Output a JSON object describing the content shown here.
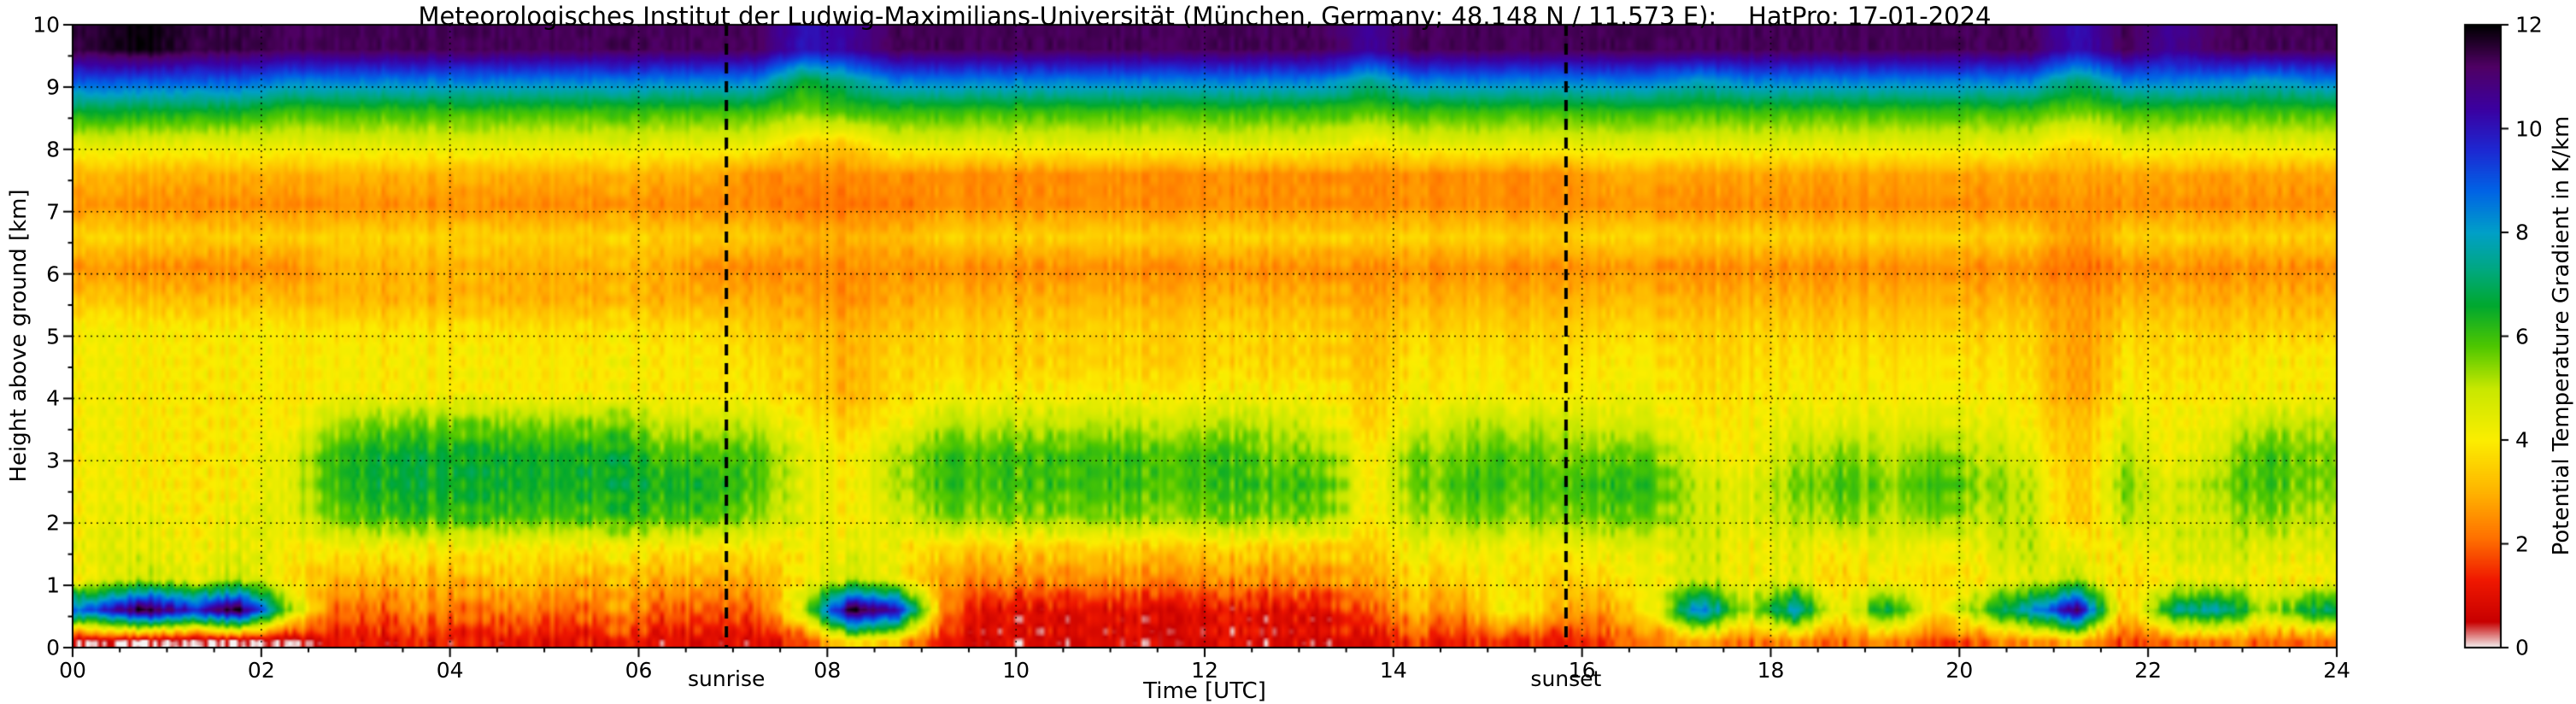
{
  "chart_data": {
    "type": "heatmap",
    "title": "Meteorologisches Institut der Ludwig-Maximilians-Universität (München, Germany; 48.148 N / 11.573 E):    HatPro: 17-01-2024",
    "xlabel": "Time [UTC]",
    "ylabel": "Height above ground [km]",
    "colorbar_label": "Potential Temperature Gradient in K/km",
    "xlim": [
      0,
      24
    ],
    "ylim": [
      0,
      10
    ],
    "clim": [
      0,
      12
    ],
    "gridline_style": "dotted",
    "x_ticks": [
      "00",
      "02",
      "04",
      "06",
      "08",
      "10",
      "12",
      "14",
      "16",
      "18",
      "20",
      "22",
      "24"
    ],
    "x_tick_values": [
      0,
      2,
      4,
      6,
      8,
      10,
      12,
      14,
      16,
      18,
      20,
      22,
      24
    ],
    "y_ticks": [
      "0",
      "1",
      "2",
      "3",
      "4",
      "5",
      "6",
      "7",
      "8",
      "9",
      "10"
    ],
    "y_tick_values": [
      0,
      1,
      2,
      3,
      4,
      5,
      6,
      7,
      8,
      9,
      10
    ],
    "colorbar_ticks": [
      "0",
      "2",
      "4",
      "6",
      "8",
      "10",
      "12"
    ],
    "colorbar_tick_values": [
      0,
      2,
      4,
      6,
      8,
      10,
      12
    ],
    "annotations": [
      {
        "label": "sunrise",
        "time_utc": 6.93,
        "line_style": "dashed"
      },
      {
        "label": "sunset",
        "time_utc": 15.83,
        "line_style": "dashed"
      }
    ],
    "colormap": [
      [
        0,
        "#f5f5f5"
      ],
      [
        0.5,
        "#c80000"
      ],
      [
        1.3,
        "#f01800"
      ],
      [
        2.1,
        "#ff7000"
      ],
      [
        3,
        "#ffb400"
      ],
      [
        4,
        "#fcee00"
      ],
      [
        5,
        "#c8e800"
      ],
      [
        5.8,
        "#50c800"
      ],
      [
        6.6,
        "#00a830"
      ],
      [
        7.3,
        "#00a882"
      ],
      [
        8,
        "#00a0c8"
      ],
      [
        8.8,
        "#0064e6"
      ],
      [
        9.6,
        "#1e28d2"
      ],
      [
        10.4,
        "#3c00a0"
      ],
      [
        11.2,
        "#500064"
      ],
      [
        12,
        "#000000"
      ]
    ],
    "grid": {
      "time_start": 0.25,
      "time_step": 0.5,
      "height_start": 0.1,
      "height_step": 0.5,
      "units": "K/km",
      "values": [
        [
          0.1,
          0.15,
          0.1,
          0.15,
          0.3,
          1,
          1,
          1.2,
          1,
          1.2,
          1,
          1.2,
          1,
          1,
          1,
          1.5,
          4,
          3,
          1,
          0.8,
          0.8,
          0.8,
          0.8,
          0.8,
          0.8,
          0.8,
          0.8,
          1,
          1.5,
          1.2,
          1.5,
          1.2,
          1.5,
          2,
          3,
          2,
          2.5,
          2,
          2.5,
          1.5,
          2,
          2.5,
          3,
          1.5,
          2,
          2.5,
          2,
          2
        ],
        [
          9,
          12,
          10,
          12,
          6,
          2,
          2,
          2.5,
          2,
          2.5,
          2,
          2.5,
          2,
          2,
          2,
          5,
          12,
          10,
          2,
          1,
          1,
          1,
          1,
          1,
          1,
          1,
          1,
          2,
          3,
          2.5,
          4.5,
          3,
          2.5,
          4,
          9,
          5,
          8,
          4,
          7,
          3.5,
          6,
          8,
          11,
          3,
          7,
          8,
          5,
          7
        ],
        [
          4,
          5,
          4.5,
          5,
          4,
          3,
          3,
          3,
          3,
          3.5,
          3,
          3,
          3,
          3,
          3,
          4,
          5,
          4,
          2.5,
          2.5,
          2.5,
          2.5,
          2.5,
          2.5,
          2.5,
          2.5,
          2.5,
          3,
          3.5,
          3.5,
          4,
          3.5,
          3.5,
          4,
          5,
          4,
          4.5,
          3.5,
          4,
          3.5,
          4,
          4.5,
          5,
          3.5,
          4,
          4.5,
          4,
          4
        ],
        [
          4.2,
          4.5,
          4.2,
          4.5,
          4.2,
          4,
          4,
          4,
          4,
          4,
          4,
          4,
          4,
          4,
          4,
          4,
          4.5,
          4,
          3.5,
          3.5,
          3.5,
          3.5,
          3.5,
          3.5,
          3.5,
          3.5,
          3.5,
          3.5,
          4.2,
          4.2,
          4.2,
          4.2,
          4.2,
          4.2,
          5,
          4,
          4.5,
          4,
          4.5,
          4,
          4.5,
          5,
          4,
          4,
          4.5,
          5,
          4.5,
          4.5
        ],
        [
          4,
          4.5,
          4,
          4.5,
          4.5,
          5.5,
          6,
          6,
          6,
          6,
          6,
          6,
          6,
          6,
          5.5,
          4.5,
          4,
          4.5,
          5.5,
          5.5,
          5.5,
          5.5,
          5.5,
          5.5,
          5.5,
          5.5,
          5.5,
          4,
          5,
          5.5,
          5.5,
          5.5,
          5.5,
          5.5,
          5,
          4.5,
          5,
          5.5,
          5,
          5.5,
          5,
          5,
          3,
          5,
          4.5,
          5,
          5.5,
          5
        ],
        [
          4,
          4,
          4,
          4,
          4.5,
          6,
          6.5,
          6.5,
          6.5,
          6.5,
          6.5,
          6.5,
          6.5,
          6.5,
          6,
          4.5,
          4,
          5,
          6,
          6,
          6,
          6,
          6,
          6,
          6,
          6,
          6,
          4,
          5.5,
          6,
          6,
          6,
          6,
          6,
          5,
          4.5,
          5.5,
          6,
          5.5,
          6,
          5.5,
          5,
          3,
          5.5,
          4.5,
          5.5,
          6,
          5.5
        ],
        [
          4,
          4,
          4,
          4,
          4.5,
          6,
          6.5,
          6.5,
          6.5,
          6.5,
          6.5,
          6.5,
          6,
          6,
          6,
          4.5,
          4,
          5,
          6,
          6,
          6,
          6,
          6,
          6,
          6,
          5.5,
          5.5,
          4,
          5.5,
          5.5,
          6,
          5.5,
          5.5,
          5.5,
          4.5,
          4,
          5,
          5.5,
          5,
          5.5,
          5,
          4.5,
          3,
          5,
          4,
          5,
          6,
          5.5
        ],
        [
          4,
          4,
          4,
          4,
          4,
          5,
          5.5,
          5.5,
          5.5,
          5.5,
          5.5,
          5.5,
          5,
          5,
          5,
          4,
          3.5,
          4,
          5,
          5,
          5,
          5,
          5,
          5,
          5,
          5,
          4.5,
          3.5,
          4.5,
          5,
          5,
          5,
          4.5,
          4.5,
          4,
          4,
          4.5,
          4.5,
          4.5,
          4.5,
          4.5,
          4,
          3,
          4.5,
          4,
          4.5,
          5,
          5
        ],
        [
          4,
          4,
          4,
          4,
          4,
          4,
          4,
          4,
          4,
          4,
          4,
          4,
          4,
          4,
          4,
          3.5,
          3,
          3.5,
          4,
          4,
          4,
          4,
          4,
          4,
          4,
          4,
          4,
          3.5,
          4,
          4,
          4,
          4,
          4,
          4,
          3.8,
          3.8,
          4,
          4,
          4,
          4,
          4,
          3.8,
          2.5,
          4,
          3.8,
          4,
          4,
          4
        ],
        [
          4,
          4,
          4,
          4,
          4,
          4,
          4,
          4,
          4,
          4,
          4,
          4,
          4,
          4,
          3.8,
          3.5,
          3,
          3.5,
          3.5,
          3.5,
          3.5,
          3.5,
          3.5,
          3.5,
          3.5,
          3.5,
          3.5,
          3.2,
          3.8,
          3.8,
          3.8,
          3.8,
          3.8,
          3.8,
          3.6,
          3.6,
          3.8,
          3.8,
          3.8,
          3.8,
          3.8,
          3.6,
          2.5,
          3.8,
          3.6,
          3.8,
          4,
          4
        ],
        [
          4,
          4,
          4,
          4,
          4,
          3.8,
          3.8,
          3.8,
          3.8,
          3.8,
          3.8,
          3.8,
          3.8,
          3.8,
          3.5,
          3.2,
          3,
          3.2,
          3.5,
          3.5,
          3.5,
          3.5,
          3.5,
          3.5,
          3.5,
          3.5,
          3.5,
          3.2,
          3.5,
          3.5,
          3.5,
          3.5,
          3.5,
          3.5,
          3.5,
          3.5,
          3.5,
          3.5,
          3.5,
          3.5,
          3.5,
          3.5,
          2.5,
          3.5,
          3.5,
          3.5,
          3.5,
          3.5
        ],
        [
          3.2,
          3.2,
          3.2,
          3.2,
          3.2,
          3,
          3,
          3,
          3,
          3,
          3,
          3,
          3,
          3,
          3,
          2.8,
          2.5,
          2.8,
          3,
          3,
          3,
          3,
          3,
          3,
          3,
          3,
          3,
          2.8,
          3,
          3,
          3,
          3,
          3,
          3,
          3,
          3,
          3,
          3,
          3,
          3,
          3,
          3,
          2.5,
          3,
          3,
          3,
          3,
          3
        ],
        [
          2.5,
          2.5,
          2.5,
          2.5,
          2.5,
          3,
          3,
          3,
          3,
          3,
          3,
          3,
          3,
          2.5,
          2.5,
          2.5,
          2.5,
          2.5,
          2.5,
          2.5,
          2.5,
          2.5,
          2.5,
          2.5,
          2.5,
          2.5,
          2.5,
          2.5,
          2.5,
          2.5,
          2.5,
          2.5,
          2.5,
          2.5,
          2.5,
          2.5,
          2.5,
          2.5,
          2.5,
          2.5,
          2.5,
          2.5,
          2,
          2.5,
          2.5,
          2.5,
          2.5,
          2.5
        ],
        [
          3.5,
          3.5,
          3.5,
          3.5,
          3.5,
          3.5,
          3.5,
          3.5,
          3.5,
          3.5,
          3.5,
          3.5,
          3.5,
          3.5,
          3.5,
          3,
          3,
          3,
          3.5,
          3.5,
          3.5,
          3.5,
          3.5,
          3.5,
          3.5,
          3.5,
          3.5,
          3.5,
          3.5,
          3.5,
          3.5,
          3.5,
          3.5,
          3.5,
          3.5,
          3.5,
          3.5,
          3.5,
          3.5,
          3.5,
          3.5,
          3.5,
          2.5,
          3.5,
          3.5,
          3.5,
          3.5,
          3.5
        ],
        [
          2.5,
          2.5,
          2.5,
          2.5,
          2.5,
          2.5,
          2.5,
          2.5,
          2.5,
          2.5,
          2.5,
          2.5,
          2.5,
          2.5,
          2.5,
          2.2,
          2.2,
          2.2,
          2.5,
          2.5,
          2.5,
          2.5,
          2.5,
          2.5,
          2.5,
          2.5,
          2.5,
          2.5,
          2.5,
          2.5,
          2.5,
          2.5,
          2.5,
          2.5,
          2.5,
          2.5,
          2.5,
          2.5,
          2.5,
          2.5,
          2.5,
          2.5,
          2.5,
          2.5,
          2.5,
          2.5,
          2.5,
          2.5
        ],
        [
          3,
          3,
          3,
          3,
          3,
          3,
          3,
          3,
          3,
          3,
          3,
          3,
          3,
          3,
          2.5,
          2.5,
          2.5,
          2.5,
          2.5,
          2.5,
          2.5,
          2.5,
          2.5,
          2.5,
          2.5,
          2.5,
          2.5,
          2.5,
          2.5,
          2.5,
          2.5,
          2.5,
          2.8,
          2.8,
          2.8,
          2.8,
          2.8,
          2.8,
          2.8,
          2.8,
          2.8,
          2.8,
          2.8,
          2.8,
          2.8,
          2.8,
          2.8,
          2.8
        ],
        [
          4.5,
          4.5,
          4.5,
          4.5,
          4.5,
          4.5,
          4.5,
          4.5,
          4.5,
          4.5,
          4.5,
          4.5,
          4.5,
          4.5,
          4.5,
          3.5,
          3.5,
          4.5,
          4.5,
          4.5,
          4.5,
          4.5,
          4.5,
          4.5,
          4.5,
          4.5,
          4.5,
          4,
          4.5,
          4.5,
          4.5,
          4.5,
          4.5,
          4.5,
          4.5,
          4.5,
          4.5,
          4.5,
          4.5,
          4.5,
          4.5,
          4.5,
          3.5,
          4.5,
          4.5,
          4.5,
          4.5,
          4.5
        ],
        [
          6.5,
          6.5,
          6.5,
          6.5,
          6,
          6,
          6,
          6,
          6,
          6,
          6,
          6,
          6,
          6,
          6,
          5.5,
          6,
          6,
          6,
          6,
          6,
          6,
          6,
          6,
          6,
          6,
          6,
          5.8,
          6,
          6,
          6,
          6,
          6,
          6,
          6,
          6,
          6,
          6,
          6,
          6,
          6,
          6,
          5.5,
          6,
          6,
          6,
          6,
          6
        ],
        [
          9,
          9,
          9,
          9,
          8.5,
          8.5,
          8.5,
          8.5,
          8.5,
          8.5,
          8.5,
          8.5,
          8.5,
          8.5,
          8.5,
          6.5,
          7.5,
          8.5,
          8.5,
          8.5,
          8.5,
          8.5,
          8.5,
          8.5,
          8.5,
          8.5,
          8.5,
          7.5,
          8.5,
          8.5,
          8.5,
          8.5,
          8.5,
          8.5,
          8,
          8.5,
          8.5,
          8.5,
          8.5,
          8.5,
          8.5,
          8.5,
          7,
          8.5,
          8.5,
          8.5,
          8,
          8.5
        ],
        [
          11.5,
          12,
          11.5,
          11.5,
          11.3,
          11.3,
          11.3,
          11.3,
          11.3,
          11.3,
          11.3,
          11.3,
          11.3,
          11.3,
          11.3,
          10,
          10.5,
          11.3,
          11.3,
          11.3,
          11.3,
          11.3,
          11.3,
          11.3,
          11.3,
          11.3,
          11.3,
          10.5,
          11.3,
          11.3,
          11.3,
          11.3,
          11.3,
          11.3,
          11.3,
          11.3,
          11.3,
          11.3,
          11.3,
          11.3,
          11.3,
          11.3,
          10,
          11.3,
          10.5,
          11.3,
          11.3,
          11.3
        ]
      ]
    }
  }
}
